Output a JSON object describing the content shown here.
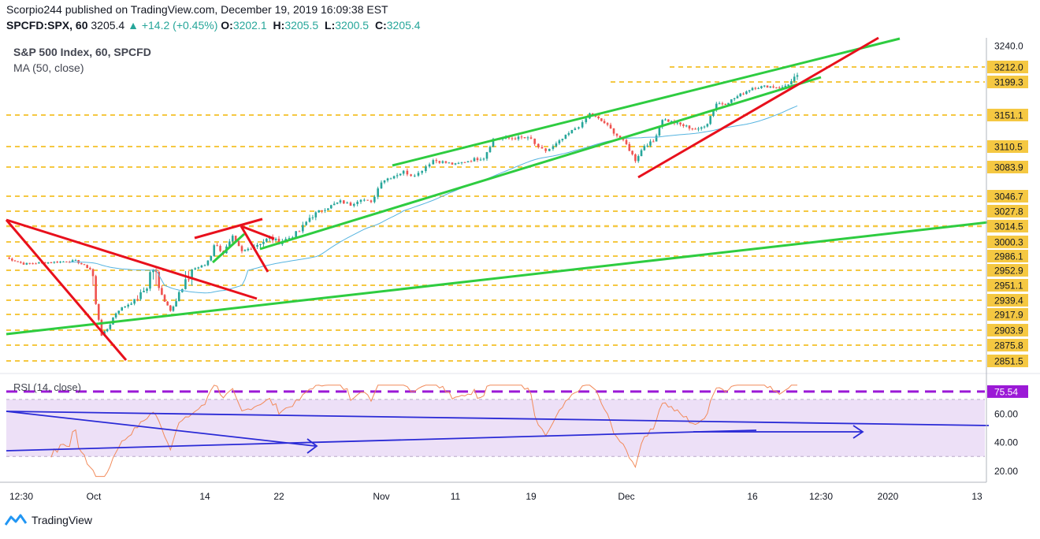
{
  "header": {
    "line1": "Scorpio244 published on TradingView.com, December 19, 2019 16:09:38 EST",
    "symbol": "SPCFD:SPX, 60",
    "last": "3205.4",
    "change": "+14.2 (+0.45%)",
    "ohlc": [
      {
        "k": "O:",
        "v": "3202.1"
      },
      {
        "k": "H:",
        "v": "3205.5"
      },
      {
        "k": "L:",
        "v": "3200.5"
      },
      {
        "k": "C:",
        "v": "3205.4"
      }
    ]
  },
  "legend": {
    "main": "S&P 500 Index, 60, SPCFD",
    "ma": "MA (50, close)",
    "rsi": "RSI (14, close)"
  },
  "footer": {
    "brand": "TradingView"
  },
  "colors": {
    "support": "#f5c842",
    "trend_green": "#2ecc40",
    "trend_red": "#e8101c",
    "ma_line": "#56b4e0",
    "rsi_line": "#f28a5a",
    "rsi_band": "#ede0f7",
    "rsi_level": "#9b19d6",
    "rsi_trend": "#2a2ad6",
    "candle_up": "#26a69a",
    "candle_down": "#ef5350"
  },
  "chart_data": [
    {
      "type": "candlestick",
      "title": "S&P 500 Index, 60, SPCFD",
      "x_tick_labels": [
        "12:30",
        "Oct",
        "14",
        "22",
        "Nov",
        "11",
        "19",
        "Dec",
        "16",
        "12:30",
        "2020",
        "13"
      ],
      "y_tick_labels": [
        3240.0,
        3212.0,
        3199.3,
        3151.1,
        3110.5,
        3083.9,
        3046.7,
        3027.8,
        3014.5,
        3000.3,
        2986.1,
        2952.9,
        2951.1,
        2939.4,
        2917.9,
        2903.9,
        2875.8,
        2851.5
      ],
      "highlighted_prices": [
        3212.0,
        3199.3,
        3151.1,
        3110.5,
        3083.9,
        3046.7,
        3027.8,
        3014.5,
        3000.3,
        2986.1,
        2952.9,
        2951.1,
        2939.4,
        2917.9,
        2903.9,
        2875.8,
        2851.5
      ],
      "price_path": [
        [
          "Sep 26",
          2982
        ],
        [
          "Sep 27",
          2968
        ],
        [
          "Sep 30",
          2975
        ],
        [
          "Oct 1",
          2952
        ],
        [
          "Oct 2",
          2895
        ],
        [
          "Oct 3",
          2910
        ],
        [
          "Oct 4",
          2925
        ],
        [
          "Oct 8",
          2955
        ],
        [
          "Oct 9",
          2945
        ],
        [
          "Oct 10",
          2925
        ],
        [
          "Oct 11",
          2945
        ],
        [
          "Oct 14",
          2965
        ],
        [
          "Oct 15",
          2998
        ],
        [
          "Oct 16",
          2990
        ],
        [
          "Oct 17",
          3004
        ],
        [
          "Oct 18",
          2990
        ],
        [
          "Oct 21",
          3004
        ],
        [
          "Oct 22",
          3000
        ],
        [
          "Oct 23",
          3004
        ],
        [
          "Oct 24",
          3010
        ],
        [
          "Oct 25",
          3022
        ],
        [
          "Oct 28",
          3040
        ],
        [
          "Oct 29",
          3036
        ],
        [
          "Oct 30",
          3044
        ],
        [
          "Oct 31",
          3038
        ],
        [
          "Nov 1",
          3066
        ],
        [
          "Nov 4",
          3078
        ],
        [
          "Nov 5",
          3074
        ],
        [
          "Nov 6",
          3076
        ],
        [
          "Nov 7",
          3085
        ],
        [
          "Nov 8",
          3093
        ],
        [
          "Nov 11",
          3087
        ],
        [
          "Nov 12",
          3091
        ],
        [
          "Nov 13",
          3094
        ],
        [
          "Nov 14",
          3096
        ],
        [
          "Nov 15",
          3120
        ],
        [
          "Nov 18",
          3122
        ],
        [
          "Nov 19",
          3120
        ],
        [
          "Nov 20",
          3108
        ],
        [
          "Nov 21",
          3105
        ],
        [
          "Nov 22",
          3110
        ],
        [
          "Nov 25",
          3134
        ],
        [
          "Nov 26",
          3140
        ],
        [
          "Nov 27",
          3153
        ],
        [
          "Nov 29",
          3141
        ],
        [
          "Dec 2",
          3113
        ],
        [
          "Dec 3",
          3093
        ],
        [
          "Dec 4",
          3112
        ],
        [
          "Dec 5",
          3117
        ],
        [
          "Dec 6",
          3146
        ],
        [
          "Dec 9",
          3135
        ],
        [
          "Dec 10",
          3132
        ],
        [
          "Dec 11",
          3141
        ],
        [
          "Dec 12",
          3168
        ],
        [
          "Dec 13",
          3168
        ],
        [
          "Dec 16",
          3191
        ],
        [
          "Dec 17",
          3193
        ],
        [
          "Dec 18",
          3191
        ],
        [
          "Dec 19",
          3205
        ]
      ],
      "series": [
        {
          "name": "MA (50, close)",
          "type": "line"
        }
      ]
    },
    {
      "type": "line",
      "title": "RSI (14, close)",
      "y_tick_labels": [
        60.0,
        40.0,
        20.0
      ],
      "current_value_label": "75.54",
      "levels": [
        30,
        70,
        75.54
      ],
      "ylim": [
        13,
        86
      ]
    }
  ]
}
